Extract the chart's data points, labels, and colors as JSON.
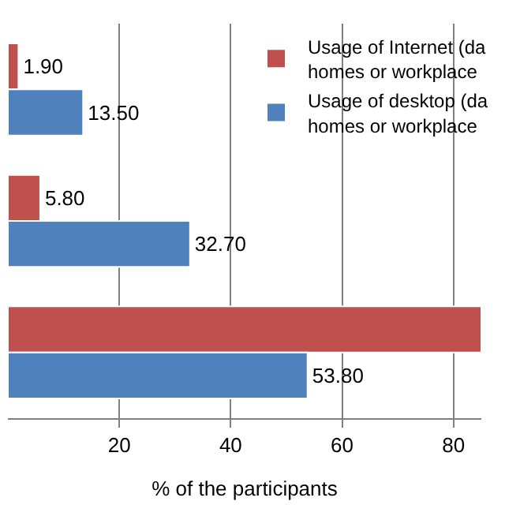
{
  "chart_data": {
    "type": "bar",
    "orientation": "horizontal",
    "categories": [
      null,
      null,
      null
    ],
    "series": [
      {
        "name": "Usage of Internet (da\nhomes or workplace",
        "color": "#c0504d",
        "values": [
          1.9,
          5.8,
          85
        ],
        "value_labels": [
          "1.90",
          "5.80",
          null
        ]
      },
      {
        "name": "Usage of desktop (da\nhomes or workplace",
        "color": "#4f81bd",
        "values": [
          13.5,
          32.7,
          53.8
        ],
        "value_labels": [
          "13.50",
          "32.70",
          "53.80"
        ]
      }
    ],
    "xlabel": "% of the participants",
    "xlim": [
      0,
      85
    ],
    "xticks": [
      20,
      40,
      60,
      80
    ],
    "grid": "x",
    "legend": "top right"
  }
}
